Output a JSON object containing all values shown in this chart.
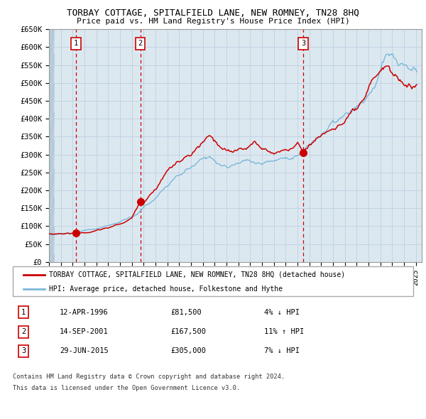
{
  "title": "TORBAY COTTAGE, SPITALFIELD LANE, NEW ROMNEY, TN28 8HQ",
  "subtitle": "Price paid vs. HM Land Registry's House Price Index (HPI)",
  "legend_line1": "TORBAY COTTAGE, SPITALFIELD LANE, NEW ROMNEY, TN28 8HQ (detached house)",
  "legend_line2": "HPI: Average price, detached house, Folkestone and Hythe",
  "purchases": [
    {
      "label": "1",
      "date": "12-APR-1996",
      "price": 81500,
      "x_year": 1996.28,
      "hpi_pct": "4% ↓ HPI"
    },
    {
      "label": "2",
      "date": "14-SEP-2001",
      "price": 167500,
      "x_year": 2001.71,
      "hpi_pct": "11% ↑ HPI"
    },
    {
      "label": "3",
      "date": "29-JUN-2015",
      "price": 305000,
      "x_year": 2015.49,
      "hpi_pct": "7% ↓ HPI"
    }
  ],
  "footnote1": "Contains HM Land Registry data © Crown copyright and database right 2024.",
  "footnote2": "This data is licensed under the Open Government Licence v3.0.",
  "ylim": [
    0,
    650000
  ],
  "yticks": [
    0,
    50000,
    100000,
    150000,
    200000,
    250000,
    300000,
    350000,
    400000,
    450000,
    500000,
    550000,
    600000,
    650000
  ],
  "xlim_start": 1994.0,
  "xlim_end": 2025.5,
  "hpi_color": "#7ab8d9",
  "price_color": "#cc0000",
  "dot_color": "#cc0000",
  "vline_color": "#cc0000",
  "box_color": "#cc0000",
  "grid_color": "#c0d0e0",
  "plot_bg": "#dce8f0",
  "hatch_color": "#b0c4d4"
}
